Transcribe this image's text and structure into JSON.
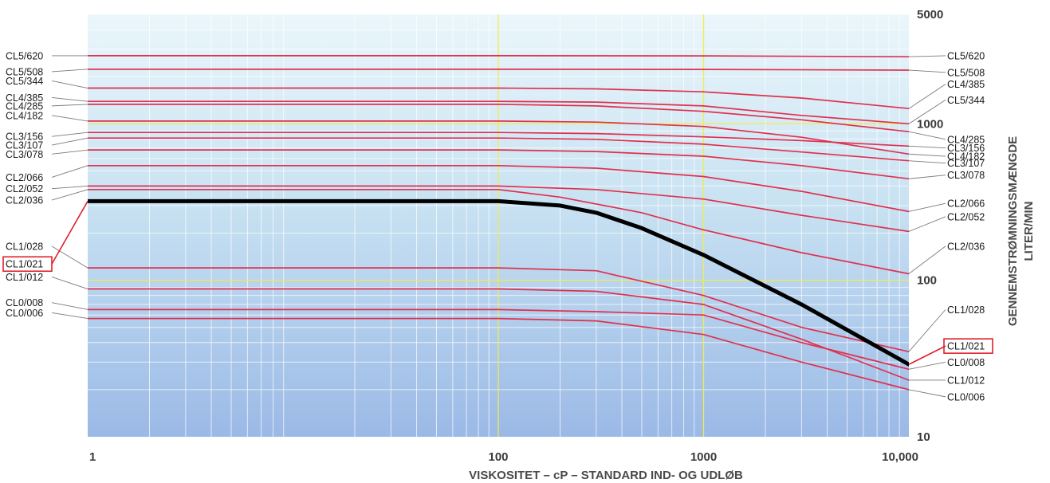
{
  "chart_data": {
    "type": "line",
    "xlabel": "VISKOSITET – cP – STANDARD IND- OG UDLØB",
    "ylabel": [
      "GENNEMSTRØMNINGSMÆNGDE",
      "LITER/MIN"
    ],
    "x_scale": "log",
    "y_scale": "log",
    "xlim": [
      1,
      10000
    ],
    "ylim": [
      10,
      5000
    ],
    "x_ticks": [
      {
        "value": 1,
        "label": "1"
      },
      {
        "value": 100,
        "label": "100"
      },
      {
        "value": 1000,
        "label": "1000"
      },
      {
        "value": 10000,
        "label": "10,000"
      }
    ],
    "y_ticks": [
      {
        "value": 5000,
        "label": "5000"
      },
      {
        "value": 1000,
        "label": "1000"
      },
      {
        "value": 100,
        "label": "100"
      },
      {
        "value": 10,
        "label": "10"
      }
    ],
    "colors": {
      "curve": "#e0304e",
      "highlight": "#000000",
      "callout_box": "#e0202a",
      "major_grid": "#f2ec4c",
      "bg_top": "#e9f6fb",
      "bg_bottom": "#99b8e6"
    },
    "highlighted_series": "CL1/021",
    "series": [
      {
        "name": "CL5/620",
        "left_label": "CL5/620",
        "right_label": "CL5/620",
        "left_label_y": 2720,
        "right_label_y": 2720,
        "x": [
          1,
          100,
          1000,
          10000
        ],
        "y": [
          2720,
          2720,
          2715,
          2680
        ]
      },
      {
        "name": "CL5/508",
        "left_label": "CL5/508",
        "right_label": "CL5/508",
        "left_label_y": 2150,
        "right_label_y": 2130,
        "x": [
          1,
          100,
          1000,
          10000
        ],
        "y": [
          2230,
          2230,
          2225,
          2200
        ]
      },
      {
        "name": "CL5/344",
        "left_label": "CL5/344",
        "right_label": "CL4/385",
        "left_label_y": 1880,
        "right_label_y": 1790,
        "x": [
          1,
          100,
          300,
          1000,
          3000,
          10000
        ],
        "y": [
          1690,
          1690,
          1670,
          1600,
          1460,
          1250
        ]
      },
      {
        "name": "CL4/385",
        "left_label": "CL4/385",
        "right_label": "CL5/344",
        "left_label_y": 1470,
        "right_label_y": 1420,
        "x": [
          1,
          100,
          300,
          1000,
          3000,
          10000
        ],
        "y": [
          1390,
          1390,
          1375,
          1300,
          1130,
          1000
        ]
      },
      {
        "name": "CL4/285",
        "left_label": "CL4/285",
        "right_label": "CL4/285",
        "left_label_y": 1300,
        "right_label_y": 795,
        "x": [
          1,
          100,
          300,
          1000,
          3000,
          10000
        ],
        "y": [
          1330,
          1330,
          1300,
          1200,
          1060,
          890
        ]
      },
      {
        "name": "CL4/182",
        "left_label": "CL4/182",
        "right_label": "CL4/182",
        "left_label_y": 1130,
        "right_label_y": 620,
        "x": [
          1,
          100,
          300,
          1000,
          3000,
          10000
        ],
        "y": [
          1040,
          1040,
          1025,
          960,
          820,
          640
        ]
      },
      {
        "name": "CL3/156",
        "left_label": "CL3/156",
        "right_label": "CL3/156",
        "left_label_y": 830,
        "right_label_y": 700,
        "x": [
          1,
          100,
          300,
          1000,
          3000,
          10000
        ],
        "y": [
          880,
          880,
          865,
          825,
          780,
          720
        ]
      },
      {
        "name": "CL3/107",
        "left_label": "CL3/107",
        "right_label": "CL3/107",
        "left_label_y": 730,
        "right_label_y": 560,
        "x": [
          1,
          100,
          300,
          1000,
          3000,
          10000
        ],
        "y": [
          810,
          810,
          795,
          740,
          660,
          580
        ]
      },
      {
        "name": "CL3/078",
        "left_label": "CL3/078",
        "right_label": "CL3/078",
        "left_label_y": 640,
        "right_label_y": 470,
        "x": [
          1,
          100,
          300,
          1000,
          3000,
          10000
        ],
        "y": [
          680,
          680,
          665,
          620,
          540,
          445
        ]
      },
      {
        "name": "CL2/066",
        "left_label": "CL2/066",
        "right_label": "CL2/066",
        "left_label_y": 455,
        "right_label_y": 310,
        "x": [
          1,
          100,
          300,
          1000,
          3000,
          10000
        ],
        "y": [
          540,
          540,
          520,
          460,
          370,
          275
        ]
      },
      {
        "name": "CL2/052",
        "left_label": "CL2/052",
        "right_label": "CL2/052",
        "left_label_y": 385,
        "right_label_y": 255,
        "x": [
          1,
          100,
          300,
          1000,
          3000,
          10000
        ],
        "y": [
          400,
          400,
          380,
          330,
          260,
          205
        ]
      },
      {
        "name": "CL2/036",
        "left_label": "CL2/036",
        "right_label": "CL2/036",
        "left_label_y": 325,
        "right_label_y": 165,
        "x": [
          1,
          100,
          200,
          500,
          1000,
          3000,
          10000
        ],
        "y": [
          380,
          380,
          340,
          270,
          210,
          150,
          110
        ]
      },
      {
        "name": "CL1/028",
        "left_label": "CL1/028",
        "right_label": "CL1/028",
        "left_label_y": 165,
        "right_label_y": 65,
        "x": [
          1,
          100,
          300,
          1000,
          3000,
          10000
        ],
        "y": [
          120,
          120,
          115,
          80,
          50,
          35
        ]
      },
      {
        "name": "CL1/021",
        "left_label": "CL1/021",
        "right_label": "CL1/021",
        "left_label_y": 127,
        "right_label_y": 38,
        "highlight": true,
        "x": [
          1,
          100,
          200,
          300,
          500,
          1000,
          3000,
          10000
        ],
        "y": [
          320,
          320,
          300,
          270,
          215,
          145,
          70,
          29
        ]
      },
      {
        "name": "CL1/012",
        "left_label": "CL1/012",
        "right_label": "CL1/012",
        "left_label_y": 105,
        "right_label_y": 23,
        "x": [
          1,
          100,
          300,
          1000,
          3000,
          10000
        ],
        "y": [
          88,
          88,
          85,
          70,
          42,
          23
        ]
      },
      {
        "name": "CL0/008",
        "left_label": "CL0/008",
        "right_label": "CL0/008",
        "left_label_y": 72,
        "right_label_y": 30,
        "x": [
          1,
          100,
          300,
          1000,
          3000,
          10000
        ],
        "y": [
          65,
          65,
          63,
          60,
          40,
          27
        ]
      },
      {
        "name": "CL0/006",
        "left_label": "CL0/006",
        "right_label": "CL0/006",
        "left_label_y": 62,
        "right_label_y": 18,
        "x": [
          1,
          100,
          300,
          1000,
          3000,
          10000
        ],
        "y": [
          57,
          57,
          55,
          45,
          30,
          20
        ]
      }
    ]
  }
}
